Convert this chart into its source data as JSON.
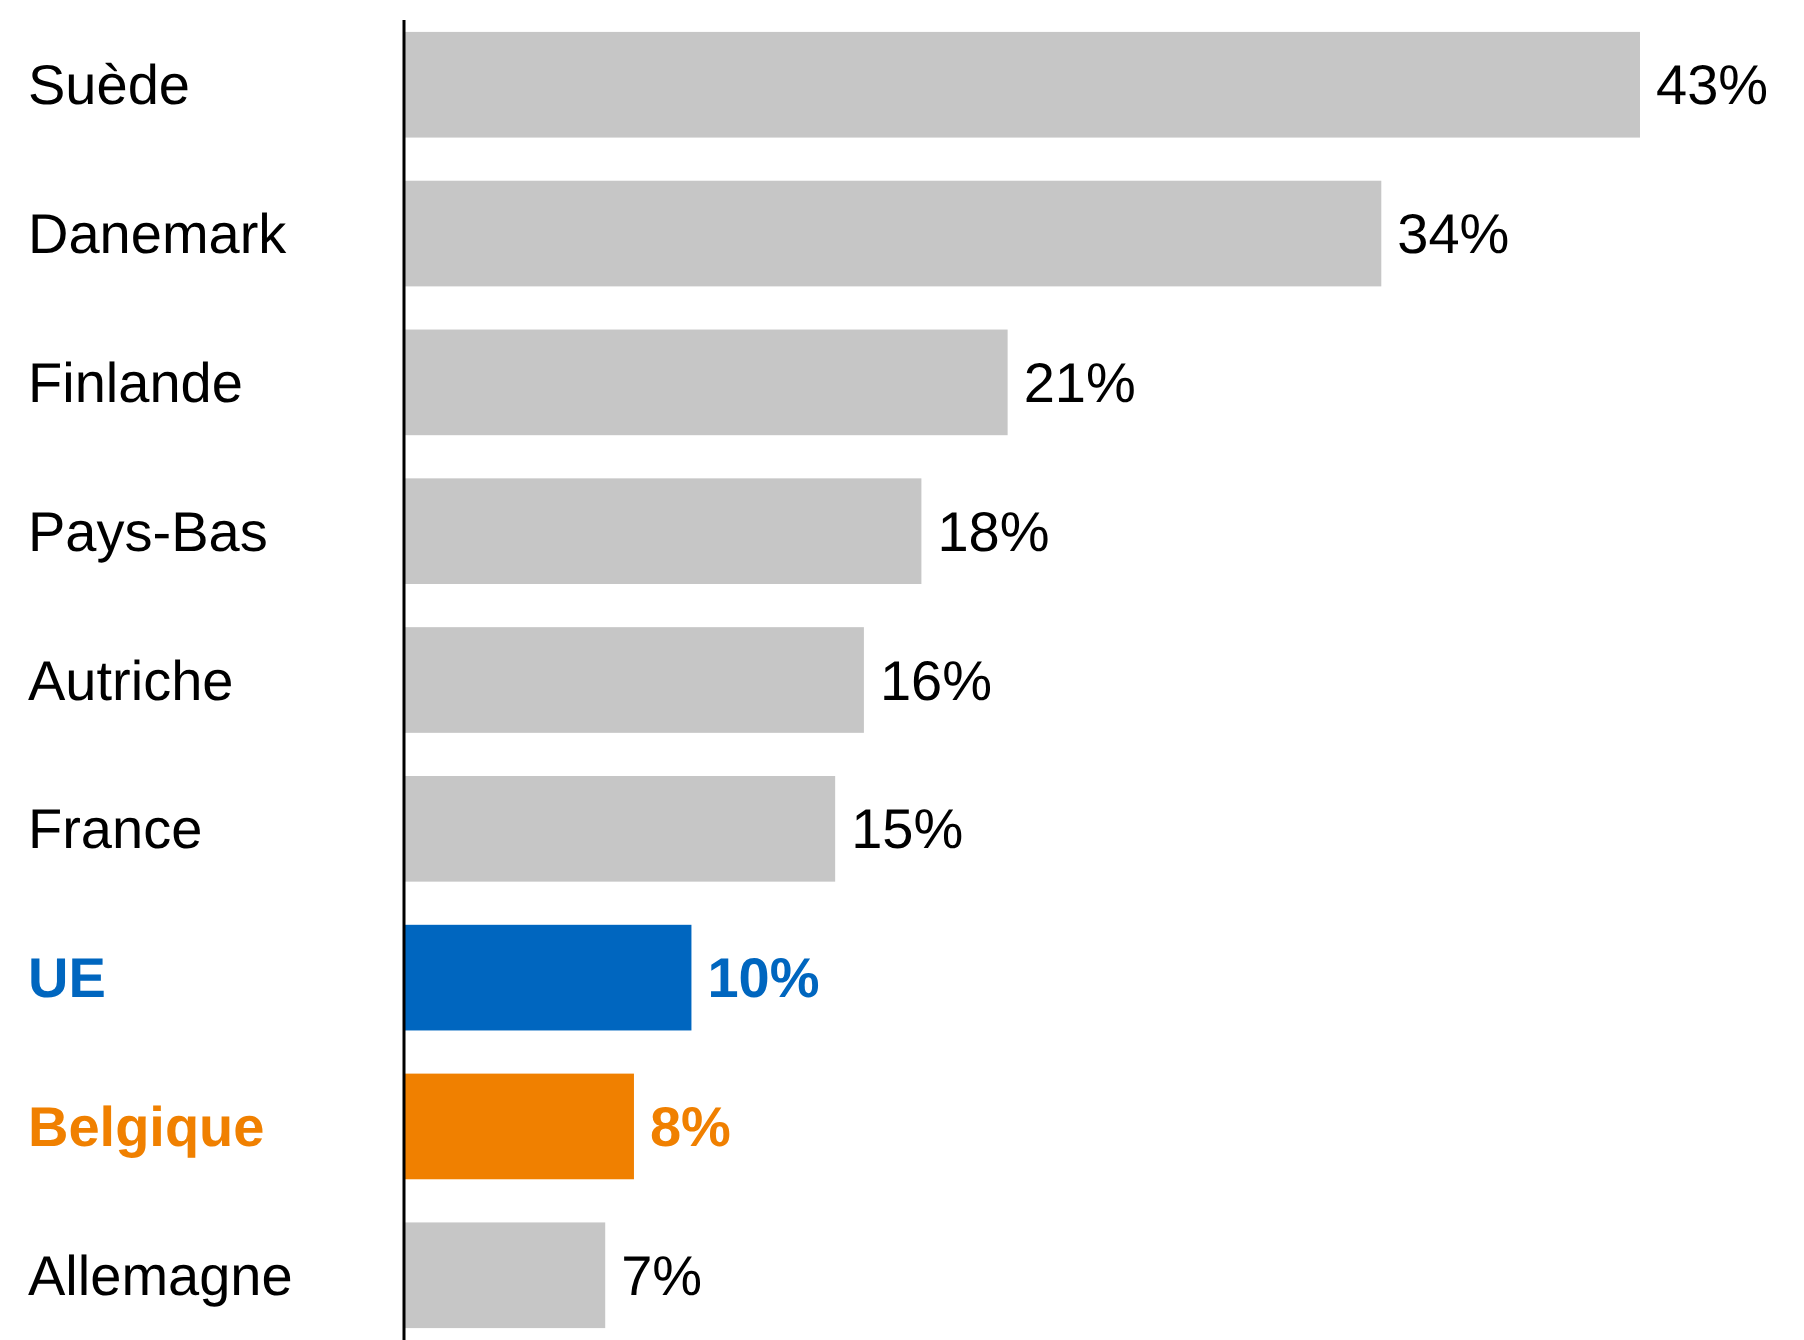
{
  "chart_data": {
    "type": "bar",
    "orientation": "horizontal",
    "value_labels": [
      "43%",
      "34%",
      "21%",
      "18%",
      "16%",
      "15%",
      "10%",
      "8%",
      "7%"
    ],
    "categories": [
      "Suède",
      "Danemark",
      "Finlande",
      "Pays-Bas",
      "Autriche",
      "France",
      "UE",
      "Belgique",
      "Allemagne"
    ],
    "values": [
      43,
      34,
      21,
      18,
      16,
      15,
      10,
      8,
      7
    ],
    "colors": [
      "#c6c6c6",
      "#c6c6c6",
      "#c6c6c6",
      "#c6c6c6",
      "#c6c6c6",
      "#c6c6c6",
      "#0066bf",
      "#f08000",
      "#c6c6c6"
    ]
  }
}
